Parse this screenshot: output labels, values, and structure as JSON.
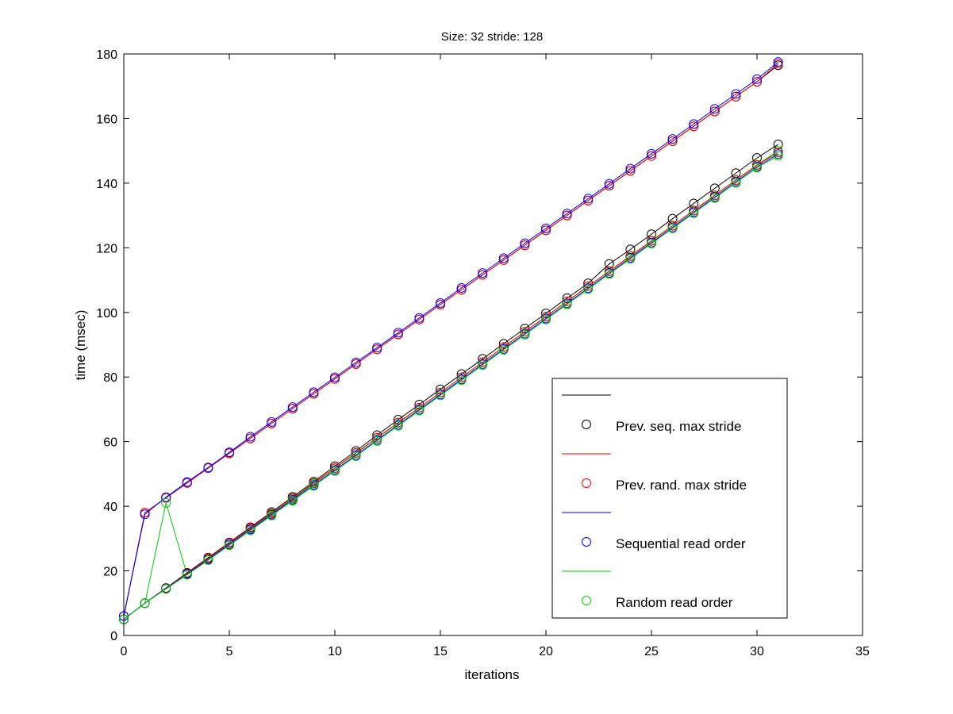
{
  "chart_data": {
    "type": "line",
    "title": "Size: 32 stride: 128",
    "xlabel": "iterations",
    "ylabel": "time (msec)",
    "xlim": [
      0,
      35
    ],
    "ylim": [
      0,
      180
    ],
    "xticks": [
      0,
      5,
      10,
      15,
      20,
      25,
      30,
      35
    ],
    "yticks": [
      0,
      20,
      40,
      60,
      80,
      100,
      120,
      140,
      160,
      180
    ],
    "xtick_labels": [
      "0",
      "5",
      "10",
      "15",
      "20",
      "25",
      "30",
      "35"
    ],
    "ytick_labels": [
      "0",
      "20",
      "40",
      "60",
      "80",
      "100",
      "120",
      "140",
      "160",
      "180"
    ],
    "grid": false,
    "legend_position": "lower-right",
    "legend": [
      {
        "label": "",
        "color": "#000000",
        "marker": "line"
      },
      {
        "label": "Prev. seq. max stride",
        "color": "#000000",
        "marker": "circle"
      },
      {
        "label": "",
        "color": "#ff0000",
        "marker": "line"
      },
      {
        "label": "Prev. rand. max stride",
        "color": "#ff0000",
        "marker": "circle"
      },
      {
        "label": "",
        "color": "#0000ff",
        "marker": "line"
      },
      {
        "label": "Sequential read order",
        "color": "#0000ff",
        "marker": "circle"
      },
      {
        "label": "",
        "color": "#00cc00",
        "marker": "line"
      },
      {
        "label": "Random read order",
        "color": "#00cc00",
        "marker": "circle"
      }
    ],
    "x": [
      0,
      1,
      2,
      3,
      4,
      5,
      6,
      7,
      8,
      9,
      10,
      11,
      12,
      13,
      14,
      15,
      16,
      17,
      18,
      19,
      20,
      21,
      22,
      23,
      24,
      25,
      26,
      27,
      28,
      29,
      30,
      31
    ],
    "series": [
      {
        "color": "#000000",
        "values": [
          6,
          38,
          42.6,
          47.2,
          51.8,
          56.4,
          61,
          65.6,
          70.2,
          74.8,
          79.4,
          84,
          88.6,
          93.2,
          97.8,
          102.4,
          107,
          111.6,
          116.2,
          120.8,
          125.4,
          130,
          134.6,
          139.2,
          143.8,
          148.4,
          153,
          157.6,
          162.2,
          166.8,
          171.4,
          176.5
        ]
      },
      {
        "color": "#ff0000",
        "values": [
          6,
          38,
          42.6,
          47.2,
          51.8,
          56.4,
          61,
          65.6,
          70.2,
          74.8,
          79.4,
          84,
          88.6,
          93.2,
          97.8,
          102.4,
          107,
          111.6,
          116.2,
          120.8,
          125.4,
          130,
          134.6,
          139.2,
          143.8,
          148.4,
          153,
          157.6,
          162.2,
          166.8,
          171.4,
          177
        ]
      },
      {
        "color": "#0000ff",
        "values": [
          6,
          37.5,
          42.8,
          47.5,
          52,
          56.7,
          61.5,
          66.1,
          70.7,
          75.3,
          79.9,
          84.5,
          89.1,
          93.7,
          98.3,
          102.9,
          107.6,
          112.2,
          116.8,
          121.4,
          126,
          130.6,
          135.2,
          139.8,
          144.5,
          149.1,
          153.7,
          158.3,
          163,
          167.6,
          172.2,
          177.5
        ]
      },
      {
        "color": "#00cc00",
        "values": [
          5,
          10,
          41,
          18.8,
          23.5,
          28.2,
          32.9,
          37.6,
          42.3,
          47,
          51.7,
          56.4,
          61.1,
          65.8,
          70.5,
          75.2,
          79.9,
          84.6,
          89.3,
          94,
          98.7,
          103.4,
          108.1,
          112.8,
          117.5,
          122.2,
          126.9,
          131.6,
          136.3,
          141,
          145.7,
          150
        ]
      },
      {
        "color": "#000000",
        "values": [
          5,
          10,
          14.7,
          19.4,
          24.1,
          28.8,
          33.5,
          38.2,
          42.9,
          47.6,
          52.4,
          57.1,
          62,
          66.8,
          71.5,
          76.2,
          80.9,
          85.6,
          90.3,
          95,
          99.7,
          104.4,
          109,
          115,
          119.5,
          124.2,
          129,
          133.7,
          138.4,
          143.1,
          147.8,
          152
        ]
      },
      {
        "color": "#ff0000",
        "values": [
          5,
          10,
          14.6,
          19.2,
          23.9,
          28.6,
          33.2,
          37.8,
          42.5,
          47.2,
          51.8,
          56.5,
          61.2,
          65.9,
          70.5,
          75.2,
          79.9,
          84.6,
          89.3,
          94,
          98.7,
          103.4,
          108.1,
          112.7,
          117.4,
          122.1,
          126.8,
          131.5,
          136.2,
          140.9,
          145.6,
          149.5
        ]
      },
      {
        "color": "#0000ff",
        "values": [
          5,
          10,
          14.5,
          19,
          23.6,
          28.2,
          32.8,
          37.4,
          42,
          46.6,
          51.2,
          55.8,
          60.5,
          65.2,
          69.9,
          74.6,
          79.3,
          84,
          88.7,
          93.4,
          98.1,
          102.8,
          107.5,
          112.2,
          116.9,
          121.6,
          126.3,
          131,
          135.7,
          140.4,
          145.1,
          149
        ]
      },
      {
        "color": "#00cc00",
        "values": [
          5,
          10,
          14.4,
          18.8,
          23.3,
          27.9,
          32.5,
          37.1,
          41.7,
          46.3,
          50.9,
          55.5,
          60.2,
          64.9,
          69.6,
          74.3,
          79,
          83.7,
          88.4,
          93.1,
          97.8,
          102.5,
          107.2,
          111.9,
          116.6,
          121.3,
          126,
          130.7,
          135.4,
          140.1,
          144.8,
          148.5
        ]
      }
    ]
  }
}
